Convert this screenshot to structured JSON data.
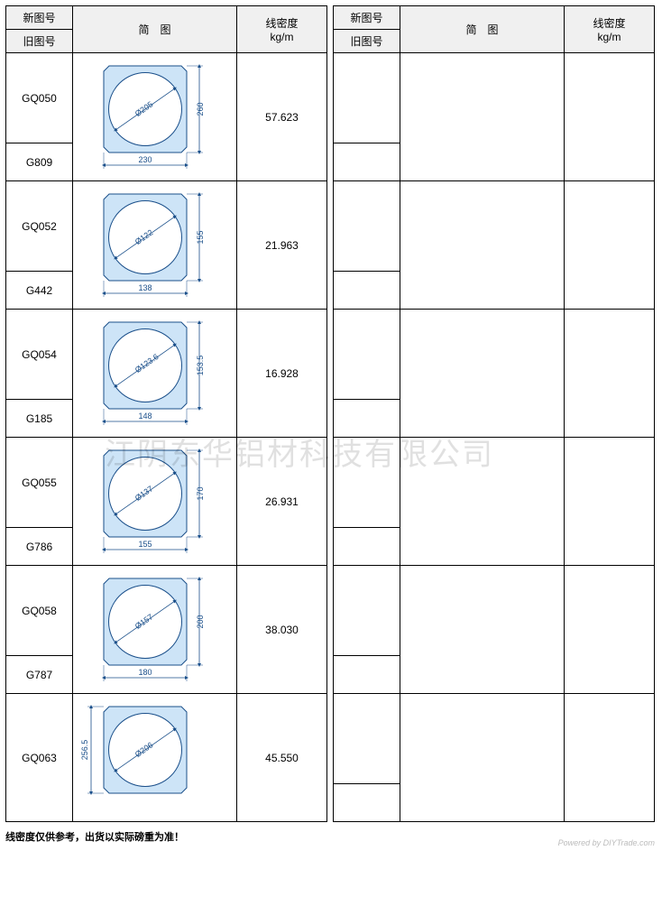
{
  "headers": {
    "new_id": "新图号",
    "old_id": "旧图号",
    "sketch": "简　图",
    "density": "线密度",
    "density_unit": "kg/m"
  },
  "rows": [
    {
      "new_id": "GQ050",
      "old_id": "G809",
      "density": "57.623",
      "shape": {
        "diameter": "Ø205",
        "width": "230",
        "height": "260",
        "fill": "#cde4f7"
      }
    },
    {
      "new_id": "GQ052",
      "old_id": "G442",
      "density": "21.963",
      "shape": {
        "diameter": "Ø122",
        "width": "138",
        "height": "155",
        "fill": "#cde4f7"
      }
    },
    {
      "new_id": "GQ054",
      "old_id": "G185",
      "density": "16.928",
      "shape": {
        "diameter": "Ø123.6",
        "width": "148",
        "height": "153.5",
        "fill": "#cde4f7"
      }
    },
    {
      "new_id": "GQ055",
      "old_id": "G786",
      "density": "26.931",
      "shape": {
        "diameter": "Ø137",
        "width": "155",
        "height": "170",
        "fill": "#cde4f7"
      }
    },
    {
      "new_id": "GQ058",
      "old_id": "G787",
      "density": "38.030",
      "shape": {
        "diameter": "Ø157",
        "width": "180",
        "height": "200",
        "fill": "#cde4f7"
      }
    },
    {
      "new_id": "GQ063",
      "old_id": "",
      "density": "45.550",
      "shape": {
        "diameter": "Ø206",
        "width": "",
        "height": "256.5",
        "fill": "#cde4f7",
        "height_on_left": true
      }
    }
  ],
  "empty_rows": 6,
  "footnote": "线密度仅供参考，出货以实际磅重为准！",
  "watermark": "江阴东华铝材科技有限公司",
  "powered": "Powered by DIYTrade.com",
  "styling": {
    "header_bg": "#f0f0f0",
    "border_color": "#000000",
    "diagram_stroke": "#1a4f8a",
    "dim_color": "#1a4f8a",
    "font_size_body": 12,
    "font_size_dim": 9
  }
}
